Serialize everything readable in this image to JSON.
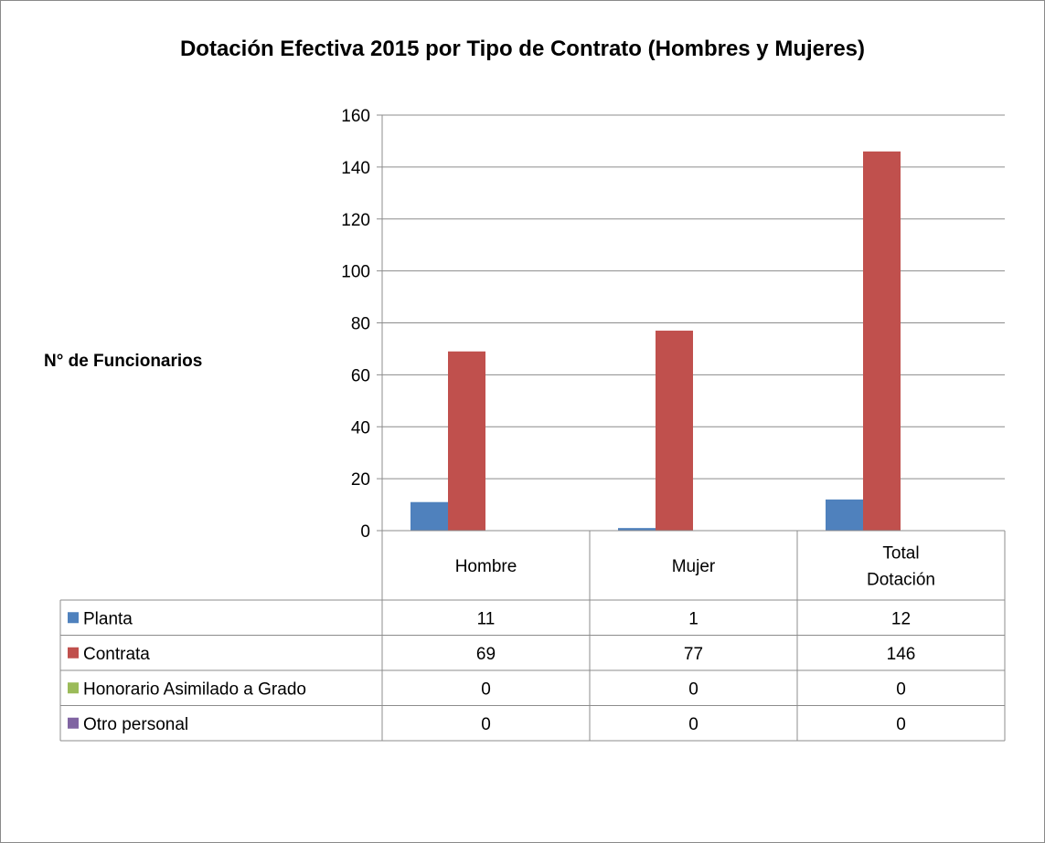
{
  "chart_data": {
    "type": "bar",
    "title": "Dotación Efectiva 2015 por Tipo de Contrato (Hombres y Mujeres)",
    "ylabel": "N° de Funcionarios",
    "xlabel": "",
    "ylim": [
      0,
      160
    ],
    "yticks": [
      "0",
      "20",
      "40",
      "60",
      "80",
      "100",
      "120",
      "140",
      "160"
    ],
    "grid": true,
    "legend": "data-table",
    "categories": [
      {
        "lines": [
          "Hombre"
        ]
      },
      {
        "lines": [
          "Mujer"
        ]
      },
      {
        "lines": [
          "Total",
          "Dotación"
        ]
      }
    ],
    "series": [
      {
        "name": "Planta",
        "color": "#4f81bd",
        "values": [
          11,
          1,
          12
        ],
        "labels": [
          "11",
          "1",
          "12"
        ]
      },
      {
        "name": "Contrata",
        "color": "#c0504d",
        "values": [
          69,
          77,
          146
        ],
        "labels": [
          "69",
          "77",
          "146"
        ]
      },
      {
        "name": "Honorario Asimilado a Grado",
        "color": "#9bbb59",
        "values": [
          0,
          0,
          0
        ],
        "labels": [
          "0",
          "0",
          "0"
        ]
      },
      {
        "name": "Otro personal",
        "color": "#8064a2",
        "values": [
          0,
          0,
          0
        ],
        "labels": [
          "0",
          "0",
          "0"
        ]
      }
    ]
  }
}
